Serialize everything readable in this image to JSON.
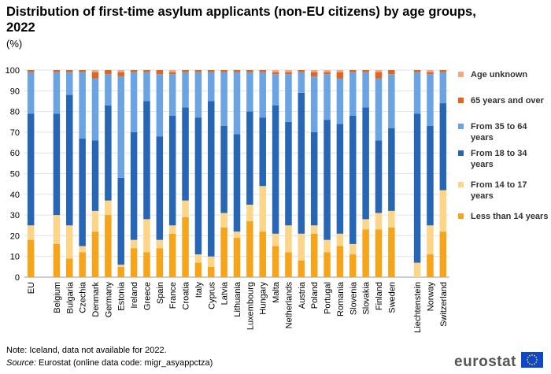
{
  "title": "Distribution of first-time asylum applicants (non-EU citizens) by age groups, 2022",
  "unit": "(%)",
  "note": "Note: Iceland, data not available for 2022.",
  "source_label": "Source:",
  "source_text": " Eurostat (online data code: migr_asyappctza)",
  "logo_text": "eurostat",
  "chart_data": {
    "type": "bar",
    "stacked": true,
    "categories": [
      "EU",
      "Belgium",
      "Bulgaria",
      "Czechia",
      "Denmark",
      "Germany",
      "Estonia",
      "Ireland",
      "Greece",
      "Spain",
      "France",
      "Croatia",
      "Italy",
      "Cyprus",
      "Latvia",
      "Lithuania",
      "Luxembourg",
      "Hungary",
      "Malta",
      "Netherlands",
      "Austria",
      "Poland",
      "Portugal",
      "Romania",
      "Slovenia",
      "Slovakia",
      "Finland",
      "Sweden",
      "Liechtenstein",
      "Norway",
      "Switzerland"
    ],
    "group_breaks_after": [
      "EU",
      "Sweden"
    ],
    "ylim": [
      0,
      100
    ],
    "yticks": [
      0,
      10,
      20,
      30,
      40,
      50,
      60,
      70,
      80,
      90,
      100
    ],
    "grid": true,
    "legend_position": "right",
    "series": [
      {
        "name": "Less than 14 years",
        "color": "#F6A51B",
        "values": [
          18,
          16,
          9,
          12,
          22,
          30,
          5,
          14,
          12,
          14,
          21,
          29,
          7,
          5,
          24,
          19,
          27,
          22,
          15,
          12,
          8,
          21,
          12,
          15,
          11,
          23,
          23,
          24,
          0,
          11,
          22
        ]
      },
      {
        "name": "From 14 to 17 years",
        "color": "#FCD589",
        "values": [
          7,
          14,
          16,
          3,
          10,
          7,
          1,
          4,
          16,
          4,
          4,
          8,
          4,
          5,
          7,
          3,
          8,
          22,
          6,
          13,
          13,
          4,
          6,
          6,
          5,
          5,
          8,
          8,
          7,
          14,
          20
        ]
      },
      {
        "name": "From 18 to 34 years",
        "color": "#2766B5",
        "values": [
          54,
          49,
          63,
          52,
          34,
          46,
          42,
          52,
          57,
          50,
          53,
          45,
          66,
          75,
          42,
          47,
          45,
          33,
          62,
          50,
          68,
          45,
          58,
          53,
          62,
          54,
          35,
          40,
          72,
          48,
          42
        ]
      },
      {
        "name": "From 35 to 64 years",
        "color": "#6CA4E3",
        "values": [
          20,
          20,
          11,
          32,
          30,
          15,
          49,
          29,
          14,
          30,
          20,
          17,
          22,
          14,
          26,
          30,
          19,
          22,
          15,
          23,
          10,
          27,
          22,
          22,
          21,
          17,
          30,
          26,
          20,
          25,
          15
        ]
      },
      {
        "name": "65 years and over",
        "color": "#E2641F",
        "values": [
          1,
          1,
          1,
          1,
          3,
          2,
          2,
          1,
          1,
          2,
          1,
          1,
          1,
          1,
          1,
          1,
          1,
          1,
          1,
          1,
          1,
          2,
          1,
          3,
          1,
          1,
          3,
          2,
          1,
          1,
          1
        ]
      },
      {
        "name": "Age unknown",
        "color": "#F2A882",
        "values": [
          0,
          0,
          0,
          0,
          1,
          0,
          1,
          0,
          0,
          0,
          1,
          0,
          0,
          0,
          0,
          0,
          0,
          0,
          1,
          1,
          0,
          1,
          1,
          1,
          0,
          0,
          1,
          0,
          0,
          1,
          0
        ]
      }
    ]
  }
}
